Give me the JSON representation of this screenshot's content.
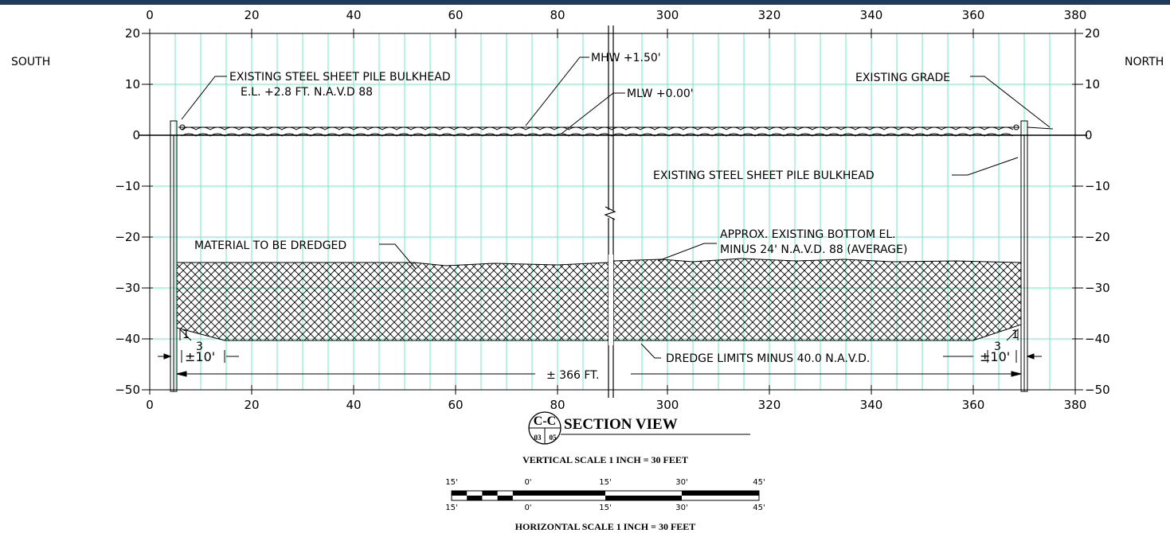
{
  "labels": {
    "south": "SOUTH",
    "north": "NORTH",
    "bulkhead_south": "EXISTING STEEL SHEET PILE BULKHEAD",
    "bulkhead_south_el": "E.L. +2.8 FT. N.A.V.D 88",
    "mhw": "MHW +1.50'",
    "mlw": "MLW +0.00'",
    "existing_grade": "EXISTING GRADE",
    "bulkhead_north": "EXISTING STEEL SHEET PILE BULKHEAD",
    "material": "MATERIAL TO BE DREDGED",
    "approx_bottom_1": "APPROX. EXISTING BOTTOM EL.",
    "approx_bottom_2": "MINUS 24' N.A.V.D. 88 (AVERAGE)",
    "dredge_limits": "DREDGE LIMITS MINUS 40.0 N.A.V.D.",
    "width": "± 366 FT.",
    "offset_left": "±10'",
    "offset_right": "±10'",
    "slope_rise": "1",
    "slope_run": "3"
  },
  "axes": {
    "x_left_ticks": [
      "0",
      "20",
      "40",
      "60",
      "80"
    ],
    "x_right_ticks": [
      "300",
      "320",
      "340",
      "360",
      "380"
    ],
    "y_ticks": [
      "20",
      "10",
      "0",
      "−10",
      "−20",
      "−30",
      "−40",
      "−50"
    ]
  },
  "title_block": {
    "section_id": "C-C",
    "sheet_from": "03",
    "sheet_to": "05",
    "title": "SECTION VIEW",
    "vertical_scale": "VERTICAL SCALE 1 INCH = 30 FEET",
    "horizontal_scale": "HORIZONTAL SCALE 1 INCH = 30 FEET",
    "scale_ticks": [
      "15'",
      "0'",
      "15'",
      "30'",
      "45'"
    ]
  },
  "colors": {
    "header_bar": "#1f3a5a",
    "grid": "#6ee8c0",
    "ink": "#000000"
  }
}
